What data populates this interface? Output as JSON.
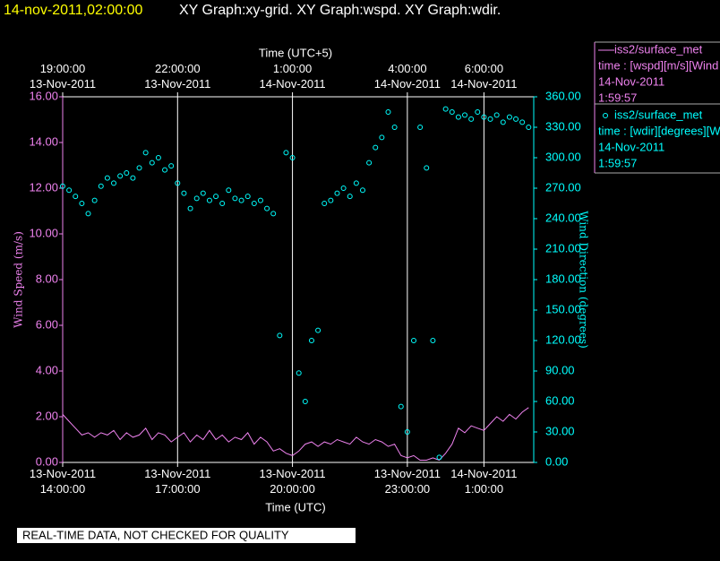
{
  "chart_data": {
    "type": "line_scatter",
    "title": "14-nov-2011,02:00:00",
    "subtitle": "XY Graph:xy-grid.  XY Graph:wspd.  XY Graph:wdir.",
    "xlabel": "Time (UTC)",
    "x2label": "Time (UTC+5)",
    "ylabel": "Wind Speed (m/s)",
    "y2label": "Wind Direction (degrees)",
    "footer": "REAL-TIME DATA, NOT CHECKED FOR QUALITY",
    "xlim": [
      "2011-11-13 14:00",
      "2011-11-14 02:18"
    ],
    "xticks": [
      {
        "value": "2011-11-13 14:00",
        "label": "13-Nov-2011 14:00:00"
      },
      {
        "value": "2011-11-13 17:00",
        "label": "13-Nov-2011 17:00:00"
      },
      {
        "value": "2011-11-13 20:00",
        "label": "13-Nov-2011 20:00:00"
      },
      {
        "value": "2011-11-13 23:00",
        "label": "13-Nov-2011 23:00:00"
      },
      {
        "value": "2011-11-14 01:00",
        "label": "14-Nov-2011 1:00:00"
      }
    ],
    "x2ticks": [
      {
        "value": "2011-11-13 14:00",
        "label": "19:00:00 13-Nov-2011"
      },
      {
        "value": "2011-11-13 17:00",
        "label": "22:00:00 13-Nov-2011"
      },
      {
        "value": "2011-11-13 20:00",
        "label": "1:00:00 14-Nov-2011"
      },
      {
        "value": "2011-11-13 23:00",
        "label": "4:00:00 14-Nov-2011"
      },
      {
        "value": "2011-11-14 01:00",
        "label": "6:00:00 14-Nov-2011"
      }
    ],
    "ylim": [
      0,
      16
    ],
    "yticks": [
      {
        "value": 0,
        "label": "0.00"
      },
      {
        "value": 2,
        "label": "2.00"
      },
      {
        "value": 4,
        "label": "4.00"
      },
      {
        "value": 6,
        "label": "6.00"
      },
      {
        "value": 8,
        "label": "8.00"
      },
      {
        "value": 10,
        "label": "10.00"
      },
      {
        "value": 12,
        "label": "12.00"
      },
      {
        "value": 14,
        "label": "14.00"
      },
      {
        "value": 16,
        "label": "16.00"
      }
    ],
    "y2lim": [
      0,
      360
    ],
    "y2ticks": [
      {
        "value": 0,
        "label": "0.00"
      },
      {
        "value": 30,
        "label": "30.00"
      },
      {
        "value": 60,
        "label": "60.00"
      },
      {
        "value": 90,
        "label": "90.00"
      },
      {
        "value": 120,
        "label": "120.00"
      },
      {
        "value": 150,
        "label": "150.00"
      },
      {
        "value": 180,
        "label": "180.00"
      },
      {
        "value": 210,
        "label": "210.00"
      },
      {
        "value": 240,
        "label": "240.00"
      },
      {
        "value": 270,
        "label": "270.00"
      },
      {
        "value": 300,
        "label": "300.00"
      },
      {
        "value": 330,
        "label": "330.00"
      },
      {
        "value": 360,
        "label": "360.00"
      }
    ],
    "grid": "x",
    "x": [
      "2011-11-13 14:00",
      "2011-11-13 14:10",
      "2011-11-13 14:20",
      "2011-11-13 14:30",
      "2011-11-13 14:40",
      "2011-11-13 14:50",
      "2011-11-13 15:00",
      "2011-11-13 15:10",
      "2011-11-13 15:20",
      "2011-11-13 15:30",
      "2011-11-13 15:40",
      "2011-11-13 15:50",
      "2011-11-13 16:00",
      "2011-11-13 16:10",
      "2011-11-13 16:20",
      "2011-11-13 16:30",
      "2011-11-13 16:40",
      "2011-11-13 16:50",
      "2011-11-13 17:00",
      "2011-11-13 17:10",
      "2011-11-13 17:20",
      "2011-11-13 17:30",
      "2011-11-13 17:40",
      "2011-11-13 17:50",
      "2011-11-13 18:00",
      "2011-11-13 18:10",
      "2011-11-13 18:20",
      "2011-11-13 18:30",
      "2011-11-13 18:40",
      "2011-11-13 18:50",
      "2011-11-13 19:00",
      "2011-11-13 19:10",
      "2011-11-13 19:20",
      "2011-11-13 19:30",
      "2011-11-13 19:40",
      "2011-11-13 19:50",
      "2011-11-13 20:00",
      "2011-11-13 20:10",
      "2011-11-13 20:20",
      "2011-11-13 20:30",
      "2011-11-13 20:40",
      "2011-11-13 20:50",
      "2011-11-13 21:00",
      "2011-11-13 21:10",
      "2011-11-13 21:20",
      "2011-11-13 21:30",
      "2011-11-13 21:40",
      "2011-11-13 21:50",
      "2011-11-13 22:00",
      "2011-11-13 22:10",
      "2011-11-13 22:20",
      "2011-11-13 22:30",
      "2011-11-13 22:40",
      "2011-11-13 22:50",
      "2011-11-13 23:00",
      "2011-11-13 23:10",
      "2011-11-13 23:20",
      "2011-11-13 23:30",
      "2011-11-13 23:40",
      "2011-11-13 23:50",
      "2011-11-14 00:00",
      "2011-11-14 00:10",
      "2011-11-14 00:20",
      "2011-11-14 00:30",
      "2011-11-14 00:40",
      "2011-11-14 00:50",
      "2011-11-14 01:00",
      "2011-11-14 01:10",
      "2011-11-14 01:20",
      "2011-11-14 01:30",
      "2011-11-14 01:40",
      "2011-11-14 01:50",
      "2011-11-14 02:00",
      "2011-11-14 02:10"
    ],
    "series": [
      {
        "name": "iss2/surface_met",
        "detail": [
          "time : [wspd][m/s][Wind",
          "14-Nov-2011",
          "1:59:57"
        ],
        "style": "line",
        "axis": "y",
        "color": "#ee82ee",
        "values": [
          2.1,
          1.8,
          1.5,
          1.2,
          1.3,
          1.1,
          1.3,
          1.2,
          1.4,
          1.0,
          1.3,
          1.1,
          1.2,
          1.5,
          1.0,
          1.3,
          1.2,
          0.9,
          1.1,
          1.3,
          0.9,
          1.2,
          1.0,
          1.4,
          1.0,
          1.2,
          0.9,
          1.1,
          1.0,
          1.3,
          0.8,
          1.1,
          0.9,
          0.5,
          0.6,
          0.4,
          0.3,
          0.5,
          0.8,
          0.9,
          0.7,
          0.9,
          0.8,
          1.0,
          0.9,
          0.8,
          1.1,
          0.9,
          0.8,
          1.0,
          0.9,
          0.7,
          0.8,
          0.3,
          0.2,
          0.3,
          0.1,
          0.1,
          0.2,
          0.1,
          0.4,
          0.8,
          1.5,
          1.3,
          1.6,
          1.5,
          1.4,
          1.7,
          2.0,
          1.8,
          2.1,
          1.9,
          2.2,
          2.4
        ]
      },
      {
        "name": "iss2/surface_met",
        "detail": [
          "time : [wdir][degrees][W",
          "14-Nov-2011",
          "1:59:57"
        ],
        "style": "scatter",
        "axis": "y2",
        "color": "#00ffff",
        "values": [
          272,
          268,
          262,
          255,
          245,
          258,
          272,
          280,
          275,
          282,
          285,
          280,
          290,
          305,
          295,
          300,
          288,
          292,
          275,
          265,
          250,
          260,
          265,
          258,
          262,
          255,
          268,
          260,
          258,
          262,
          255,
          258,
          250,
          245,
          125,
          305,
          300,
          88,
          60,
          120,
          130,
          255,
          258,
          265,
          270,
          262,
          275,
          268,
          295,
          310,
          320,
          345,
          330,
          55,
          30,
          120,
          330,
          290,
          120,
          5,
          348,
          345,
          340,
          342,
          338,
          345,
          340,
          338,
          342,
          335,
          340,
          338,
          335,
          330
        ]
      }
    ]
  }
}
